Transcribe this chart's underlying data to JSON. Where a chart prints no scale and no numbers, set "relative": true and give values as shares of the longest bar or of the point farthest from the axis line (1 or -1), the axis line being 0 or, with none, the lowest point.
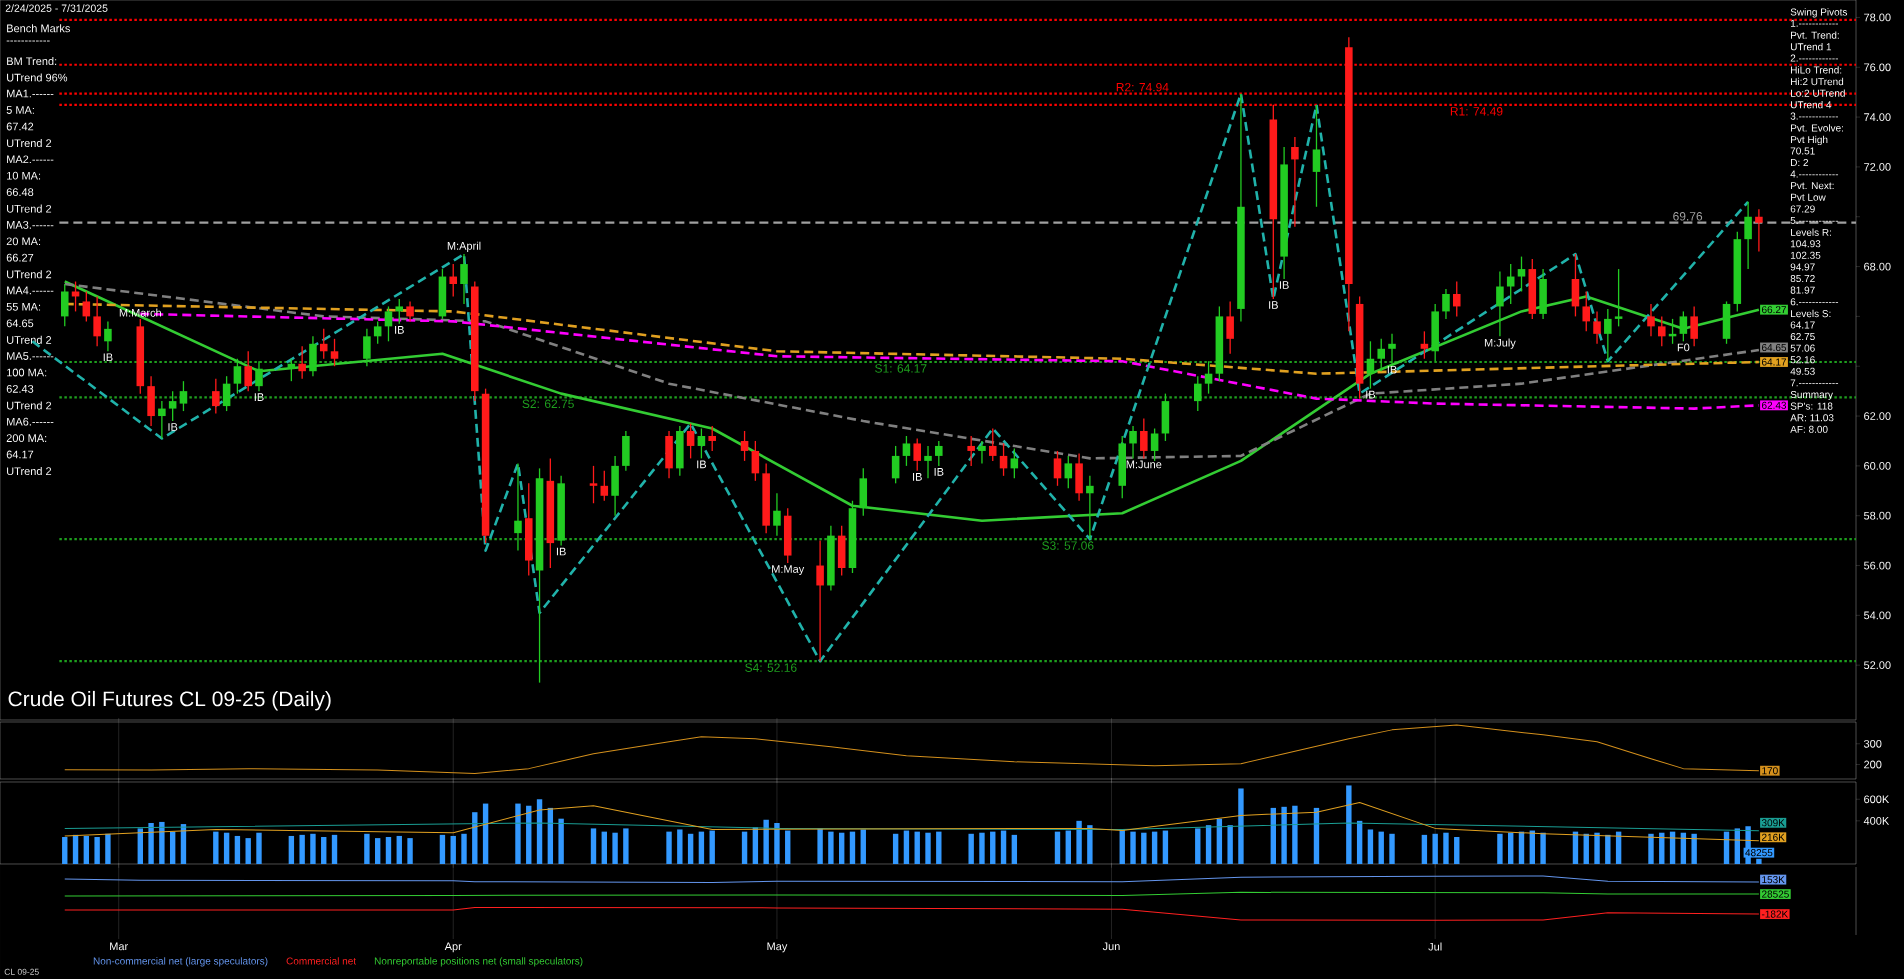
{
  "chart_data": [
    {
      "type": "other",
      "annotations": [
        "Bench Marks",
        "------------",
        "BM Trend:",
        "UTrend 96%",
        "MA1.------",
        "5 MA:",
        "67.42",
        "UTrend 2",
        "MA2.------",
        "10 MA:",
        "66.48",
        "UTrend 2",
        "MA3.------",
        "20 MA:",
        "66.27",
        "UTrend 2",
        "MA4.------",
        "55 MA:",
        "64.65",
        "UTrend 2",
        "MA5.------",
        "100 MA:",
        "62.43",
        "UTrend 2",
        "MA6.------",
        "200 MA:",
        "64.17",
        "UTrend 2"
      ]
    },
    {
      "type": "candlestick",
      "title": "Crude Oil Futures CL 09-25 (Daily)",
      "subtitle": "2/24/2025 - 7/31/2025",
      "x": [
        "2025-02-24",
        "2025-02-25",
        "2025-02-26",
        "2025-02-27",
        "2025-02-28",
        "2025-03-03",
        "2025-03-04",
        "2025-03-05",
        "2025-03-06",
        "2025-03-07",
        "2025-03-10",
        "2025-03-11",
        "2025-03-12",
        "2025-03-13",
        "2025-03-14",
        "2025-03-17",
        "2025-03-18",
        "2025-03-19",
        "2025-03-20",
        "2025-03-21",
        "2025-03-24",
        "2025-03-25",
        "2025-03-26",
        "2025-03-27",
        "2025-03-28",
        "2025-03-31",
        "2025-04-01",
        "2025-04-02",
        "2025-04-03",
        "2025-04-04",
        "2025-04-07",
        "2025-04-08",
        "2025-04-09",
        "2025-04-10",
        "2025-04-11",
        "2025-04-14",
        "2025-04-15",
        "2025-04-16",
        "2025-04-17",
        "2025-04-21",
        "2025-04-22",
        "2025-04-23",
        "2025-04-24",
        "2025-04-25",
        "2025-04-28",
        "2025-04-29",
        "2025-04-30",
        "2025-05-01",
        "2025-05-02",
        "2025-05-05",
        "2025-05-06",
        "2025-05-07",
        "2025-05-08",
        "2025-05-09",
        "2025-05-12",
        "2025-05-13",
        "2025-05-14",
        "2025-05-15",
        "2025-05-16",
        "2025-05-19",
        "2025-05-20",
        "2025-05-21",
        "2025-05-22",
        "2025-05-23",
        "2025-05-27",
        "2025-05-28",
        "2025-05-29",
        "2025-05-30",
        "2025-06-02",
        "2025-06-03",
        "2025-06-04",
        "2025-06-05",
        "2025-06-06",
        "2025-06-09",
        "2025-06-10",
        "2025-06-11",
        "2025-06-12",
        "2025-06-13",
        "2025-06-16",
        "2025-06-17",
        "2025-06-18",
        "2025-06-20",
        "2025-06-23",
        "2025-06-24",
        "2025-06-25",
        "2025-06-26",
        "2025-06-27",
        "2025-06-30",
        "2025-07-01",
        "2025-07-02",
        "2025-07-03",
        "2025-07-07",
        "2025-07-08",
        "2025-07-09",
        "2025-07-10",
        "2025-07-11",
        "2025-07-14",
        "2025-07-15",
        "2025-07-16",
        "2025-07-17",
        "2025-07-18",
        "2025-07-21",
        "2025-07-22",
        "2025-07-23",
        "2025-07-24",
        "2025-07-25",
        "2025-07-28",
        "2025-07-29",
        "2025-07-30",
        "2025-07-31"
      ],
      "ohlc": [
        [
          66.0,
          67.3,
          65.6,
          67.0
        ],
        [
          67.0,
          67.4,
          66.2,
          66.8
        ],
        [
          66.6,
          67.0,
          65.8,
          66.0
        ],
        [
          66.0,
          66.8,
          64.8,
          65.2
        ],
        [
          65.0,
          65.8,
          64.6,
          65.5
        ],
        [
          65.6,
          65.9,
          62.9,
          63.2
        ],
        [
          63.2,
          63.6,
          61.6,
          62.0
        ],
        [
          62.0,
          62.6,
          61.1,
          62.3
        ],
        [
          62.3,
          63.0,
          61.8,
          62.6
        ],
        [
          62.5,
          63.4,
          62.2,
          63.0
        ],
        [
          63.0,
          63.5,
          62.1,
          62.4
        ],
        [
          62.4,
          63.6,
          62.2,
          63.3
        ],
        [
          63.3,
          64.3,
          62.9,
          64.0
        ],
        [
          64.0,
          64.6,
          63.0,
          63.2
        ],
        [
          63.2,
          64.2,
          63.0,
          63.9
        ],
        [
          63.9,
          64.3,
          63.4,
          64.1
        ],
        [
          64.1,
          64.8,
          63.5,
          63.8
        ],
        [
          63.8,
          65.2,
          63.6,
          64.9
        ],
        [
          64.9,
          65.5,
          64.3,
          64.6
        ],
        [
          64.6,
          65.1,
          64.0,
          64.3
        ],
        [
          64.3,
          65.5,
          64.0,
          65.2
        ],
        [
          65.2,
          65.8,
          64.9,
          65.6
        ],
        [
          65.6,
          66.4,
          65.0,
          66.2
        ],
        [
          66.2,
          66.7,
          65.7,
          66.4
        ],
        [
          66.4,
          66.6,
          65.8,
          66.0
        ],
        [
          66.0,
          67.9,
          65.9,
          67.6
        ],
        [
          67.6,
          68.1,
          66.8,
          67.3
        ],
        [
          67.3,
          68.5,
          66.5,
          68.1
        ],
        [
          67.2,
          67.4,
          62.6,
          63.0
        ],
        [
          62.9,
          63.1,
          56.9,
          57.2
        ],
        [
          57.3,
          60.1,
          56.6,
          57.8
        ],
        [
          57.9,
          59.3,
          55.6,
          56.2
        ],
        [
          55.8,
          59.9,
          51.3,
          59.5
        ],
        [
          59.4,
          60.3,
          55.9,
          56.9
        ],
        [
          57.0,
          59.6,
          56.8,
          59.3
        ],
        [
          59.3,
          60.0,
          58.5,
          59.2
        ],
        [
          59.2,
          59.8,
          58.6,
          58.8
        ],
        [
          58.8,
          60.4,
          58.0,
          60.0
        ],
        [
          60.0,
          61.4,
          59.8,
          61.2
        ],
        [
          61.2,
          61.4,
          59.5,
          59.9
        ],
        [
          59.9,
          61.6,
          59.6,
          61.4
        ],
        [
          61.4,
          61.7,
          60.3,
          60.8
        ],
        [
          60.8,
          61.5,
          60.3,
          61.2
        ],
        [
          61.2,
          61.6,
          60.6,
          61.0
        ],
        [
          61.0,
          61.4,
          60.2,
          60.6
        ],
        [
          60.6,
          61.0,
          59.4,
          59.7
        ],
        [
          59.7,
          60.1,
          57.3,
          57.6
        ],
        [
          57.6,
          58.9,
          57.2,
          58.2
        ],
        [
          58.0,
          58.3,
          56.1,
          56.4
        ],
        [
          56.0,
          57.0,
          52.16,
          55.2
        ],
        [
          55.2,
          57.6,
          55.0,
          57.2
        ],
        [
          57.2,
          57.6,
          55.6,
          55.9
        ],
        [
          55.9,
          58.6,
          55.7,
          58.3
        ],
        [
          58.3,
          59.9,
          58.0,
          59.5
        ],
        [
          59.5,
          60.8,
          59.3,
          60.4
        ],
        [
          60.4,
          61.2,
          60.0,
          60.9
        ],
        [
          60.9,
          61.1,
          59.8,
          60.2
        ],
        [
          60.2,
          60.8,
          59.5,
          60.4
        ],
        [
          60.4,
          61.0,
          60.0,
          60.8
        ],
        [
          60.8,
          61.2,
          60.0,
          60.6
        ],
        [
          60.6,
          61.0,
          60.1,
          60.8
        ],
        [
          60.8,
          61.5,
          60.2,
          60.4
        ],
        [
          60.4,
          60.9,
          59.6,
          59.9
        ],
        [
          59.9,
          60.7,
          59.5,
          60.3
        ],
        [
          60.3,
          60.6,
          59.2,
          59.5
        ],
        [
          59.5,
          60.4,
          59.1,
          60.1
        ],
        [
          60.1,
          60.5,
          58.6,
          58.9
        ],
        [
          58.9,
          59.6,
          57.06,
          59.2
        ],
        [
          59.2,
          61.2,
          58.7,
          60.9
        ],
        [
          60.9,
          61.6,
          60.3,
          61.4
        ],
        [
          61.4,
          61.9,
          60.3,
          60.6
        ],
        [
          60.6,
          61.5,
          60.2,
          61.3
        ],
        [
          61.3,
          62.9,
          61.0,
          62.6
        ],
        [
          62.6,
          63.6,
          62.2,
          63.3
        ],
        [
          63.3,
          64.2,
          62.9,
          63.7
        ],
        [
          63.7,
          66.4,
          63.4,
          66.0
        ],
        [
          66.0,
          66.6,
          64.5,
          65.1
        ],
        [
          66.3,
          74.94,
          65.8,
          70.4
        ],
        [
          73.9,
          74.5,
          66.7,
          69.9
        ],
        [
          68.4,
          72.8,
          67.5,
          72.1
        ],
        [
          72.8,
          73.2,
          69.6,
          72.3
        ],
        [
          71.8,
          74.49,
          70.4,
          72.7
        ],
        [
          76.8,
          77.2,
          65.4,
          67.3
        ],
        [
          66.5,
          66.8,
          62.7,
          63.3
        ],
        [
          63.7,
          65.0,
          63.1,
          64.3
        ],
        [
          64.3,
          65.1,
          63.8,
          64.7
        ],
        [
          64.7,
          65.3,
          64.1,
          64.9
        ],
        [
          64.9,
          65.4,
          64.3,
          64.7
        ],
        [
          64.6,
          66.5,
          64.2,
          66.2
        ],
        [
          66.2,
          67.1,
          65.9,
          66.9
        ],
        [
          66.9,
          67.4,
          66.0,
          66.4
        ],
        [
          66.4,
          67.8,
          65.2,
          67.2
        ],
        [
          67.2,
          68.1,
          66.5,
          67.6
        ],
        [
          67.6,
          68.4,
          67.0,
          67.9
        ],
        [
          67.9,
          68.3,
          65.9,
          66.1
        ],
        [
          66.1,
          67.9,
          65.9,
          67.5
        ],
        [
          67.5,
          68.5,
          66.0,
          66.4
        ],
        [
          66.4,
          67.0,
          65.4,
          65.8
        ],
        [
          65.8,
          66.2,
          64.9,
          65.3
        ],
        [
          65.3,
          66.3,
          64.2,
          65.9
        ],
        [
          65.9,
          67.9,
          65.6,
          66.0
        ],
        [
          66.0,
          66.5,
          65.2,
          65.6
        ],
        [
          65.6,
          66.0,
          64.8,
          65.2
        ],
        [
          65.2,
          65.9,
          64.9,
          65.3
        ],
        [
          65.3,
          66.2,
          65.0,
          66.0
        ],
        [
          66.0,
          66.4,
          64.8,
          65.1
        ],
        [
          65.1,
          66.6,
          64.9,
          66.5
        ],
        [
          66.5,
          69.4,
          66.2,
          69.1
        ],
        [
          69.1,
          70.6,
          67.9,
          70.0
        ],
        [
          70.0,
          70.3,
          68.6,
          69.76
        ]
      ],
      "series": [
        {
          "type": "line",
          "color": "#33cc33",
          "line_style": "solid",
          "x": [
            "2025-02-24",
            "2025-03-14",
            "2025-03-31",
            "2025-04-11",
            "2025-04-25",
            "2025-05-08",
            "2025-05-20",
            "2025-06-02",
            "2025-06-13",
            "2025-06-25",
            "2025-07-09",
            "2025-07-15",
            "2025-07-24",
            "2025-07-31"
          ],
          "values": [
            67.4,
            63.8,
            64.5,
            62.9,
            61.5,
            58.4,
            57.8,
            58.1,
            60.2,
            63.7,
            66.2,
            66.8,
            65.5,
            66.27
          ],
          "value_labels": [
            null,
            null,
            null,
            null,
            null,
            null,
            null,
            null,
            null,
            null,
            null,
            null,
            null,
            "66.27"
          ]
        },
        {
          "type": "line",
          "color": "#808080",
          "line_style": "dashed",
          "x": [
            "2025-02-24",
            "2025-03-20",
            "2025-04-04",
            "2025-04-21",
            "2025-05-09",
            "2025-05-30",
            "2025-06-13",
            "2025-06-25",
            "2025-07-09",
            "2025-07-31"
          ],
          "values": [
            67.3,
            66.0,
            65.8,
            63.3,
            61.8,
            60.3,
            60.4,
            62.9,
            63.3,
            64.65
          ],
          "value_labels": [
            null,
            null,
            null,
            null,
            null,
            null,
            null,
            null,
            null,
            "64.65"
          ]
        },
        {
          "type": "line",
          "color": "#ff00ff",
          "line_style": "dashed",
          "x": [
            "2025-03-03",
            "2025-04-01",
            "2025-05-01",
            "2025-06-02",
            "2025-06-20",
            "2025-07-01",
            "2025-07-25",
            "2025-07-31"
          ],
          "values": [
            66.1,
            65.8,
            64.4,
            64.2,
            62.7,
            62.5,
            62.3,
            62.43
          ],
          "value_labels": [
            null,
            null,
            null,
            null,
            null,
            null,
            null,
            "62.43"
          ]
        },
        {
          "type": "line",
          "color": "#e0a020",
          "line_style": "dashed",
          "x": [
            "2025-02-24",
            "2025-04-01",
            "2025-05-01",
            "2025-06-02",
            "2025-06-20",
            "2025-07-31"
          ],
          "values": [
            66.5,
            66.2,
            64.6,
            64.3,
            63.7,
            64.17
          ],
          "value_labels": [
            null,
            null,
            null,
            null,
            null,
            "64.17"
          ]
        },
        {
          "type": "line",
          "color": "#20b2aa",
          "line_style": "dashed",
          "x": [
            "2025-02-21",
            "2025-03-05",
            "2025-04-02",
            "2025-04-04",
            "2025-04-07",
            "2025-04-09",
            "2025-04-23",
            "2025-05-05",
            "2025-05-21",
            "2025-05-30",
            "2025-06-13",
            "2025-06-16",
            "2025-06-20",
            "2025-06-24",
            "2025-07-14",
            "2025-07-17",
            "2025-07-30"
          ],
          "values": [
            65.0,
            61.1,
            68.5,
            56.6,
            60.1,
            54.1,
            61.7,
            52.16,
            61.5,
            57.06,
            74.94,
            66.7,
            74.49,
            62.9,
            68.5,
            64.2,
            70.6
          ]
        }
      ],
      "ref_lines": [
        {
          "axis": "y",
          "value": 74.94,
          "label": "R2: 74.94",
          "color": "#ff0000",
          "line_style": "dotted"
        },
        {
          "axis": "y",
          "value": 74.49,
          "label": "R1: 74.49",
          "color": "#ff0000",
          "line_style": "dotted"
        },
        {
          "axis": "y",
          "value": 64.17,
          "label": "S1: 64.17",
          "color": "#1e9e1e",
          "line_style": "dotted"
        },
        {
          "axis": "y",
          "value": 62.75,
          "label": "S2: 62.75",
          "color": "#1e9e1e",
          "line_style": "dotted"
        },
        {
          "axis": "y",
          "value": 57.06,
          "label": "S3: 57.06",
          "color": "#1e9e1e",
          "line_style": "dotted"
        },
        {
          "axis": "y",
          "value": 52.16,
          "label": "S4: 52.16",
          "color": "#1e9e1e",
          "line_style": "dotted"
        },
        {
          "axis": "y",
          "value": 69.76,
          "label": "69.76",
          "color": "#a0a0a0",
          "line_style": "dashed"
        },
        {
          "axis": "y",
          "value": 77.9,
          "color": "#ff0000",
          "line_style": "dotted"
        },
        {
          "axis": "y",
          "value": 76.1,
          "color": "#ff0000",
          "line_style": "dotted"
        }
      ],
      "annotations": [
        {
          "text": "IB",
          "x": "2025-02-28",
          "y": 64.6
        },
        {
          "text": "IB",
          "x": "2025-03-06",
          "y": 61.8
        },
        {
          "text": "IB",
          "x": "2025-03-14",
          "y": 63.0
        },
        {
          "text": "IB",
          "x": "2025-03-27",
          "y": 65.7
        },
        {
          "text": "IB",
          "x": "2025-04-11",
          "y": 56.8
        },
        {
          "text": "IB",
          "x": "2025-04-24",
          "y": 60.3
        },
        {
          "text": "IB",
          "x": "2025-05-14",
          "y": 59.8
        },
        {
          "text": "IB",
          "x": "2025-05-16",
          "y": 60.0
        },
        {
          "text": "IB",
          "x": "2025-06-16",
          "y": 66.7
        },
        {
          "text": "IB",
          "x": "2025-06-17",
          "y": 67.5
        },
        {
          "text": "IB",
          "x": "2025-06-25",
          "y": 63.1
        },
        {
          "text": "IB",
          "x": "2025-06-27",
          "y": 64.1
        },
        {
          "text": "M:March",
          "x": "2025-03-03",
          "y": 65.9
        },
        {
          "text": "M:April",
          "x": "2025-04-02",
          "y": 68.5
        },
        {
          "text": "M:May",
          "x": "2025-05-02",
          "y": 56.1
        },
        {
          "text": "M:June",
          "x": "2025-06-04",
          "y": 60.3
        },
        {
          "text": "M:July",
          "x": "2025-07-07",
          "y": 65.2
        },
        {
          "text": "F0",
          "x": "2025-07-24",
          "y": 65.0
        },
        "CL 09-25"
      ],
      "xlim": [
        "2025-02-18",
        "2025-08-09"
      ],
      "ylim": [
        49.8,
        78.7
      ],
      "yticks": [
        {
          "value": 52,
          "label": "52.00"
        },
        {
          "value": 54,
          "label": "54.00"
        },
        {
          "value": 56,
          "label": "56.00"
        },
        {
          "value": 58,
          "label": "58.00"
        },
        {
          "value": 60,
          "label": "60.00"
        },
        {
          "value": 62,
          "label": "62.00"
        },
        {
          "value": 64,
          "label": null
        },
        {
          "value": 66,
          "label": null
        },
        {
          "value": 68,
          "label": "68.00"
        },
        {
          "value": 70,
          "label": null
        },
        {
          "value": 72,
          "label": "72.00"
        },
        {
          "value": 74,
          "label": "74.00"
        },
        {
          "value": 76,
          "label": "76.00"
        },
        {
          "value": 78,
          "label": "78.00"
        }
      ],
      "tick_labels": "y"
    },
    {
      "type": "other",
      "annotations": [
        "Swing Pivots",
        "1.------------",
        "Pvt. Trend:",
        "UTrend 1",
        "2.------------",
        "HiLo Trend:",
        "Hi:2 UTrend",
        "Lo:2 UTrend",
        "UTrend 4",
        "3.------------",
        "Pvt. Evolve:",
        "Pvt High",
        "70.51",
        "D: 2",
        "4.------------",
        "Pvt. Next:",
        "Pvt Low",
        "67.29",
        "5.------------",
        "Levels R:",
        "104.93",
        "102.35",
        "94.97",
        "85.72",
        "81.97",
        "6.------------",
        "Levels S:",
        "64.17",
        "62.75",
        "57.06",
        "52.16",
        "49.53",
        "7.------------",
        "Summary",
        "SP's: 118",
        "AR: 11.03",
        "AF: 8.00"
      ]
    },
    {
      "type": "line",
      "color": "#d4901c",
      "x": [
        "2025-02-24",
        "2025-03-04",
        "2025-03-13",
        "2025-03-25",
        "2025-04-03",
        "2025-04-08",
        "2025-04-14",
        "2025-04-21",
        "2025-04-24",
        "2025-04-29",
        "2025-05-06",
        "2025-05-13",
        "2025-05-23",
        "2025-06-05",
        "2025-06-13",
        "2025-06-17",
        "2025-06-23",
        "2025-06-27",
        "2025-07-03",
        "2025-07-11",
        "2025-07-16",
        "2025-07-21",
        "2025-07-24",
        "2025-07-31"
      ],
      "values": [
        175,
        173,
        180,
        173,
        156,
        180,
        252,
        310,
        334,
        324,
        285,
        242,
        213,
        194,
        204,
        252,
        324,
        367,
        391,
        343,
        310,
        228,
        180,
        170
      ],
      "value_labels": [
        null,
        null,
        null,
        null,
        null,
        null,
        null,
        null,
        null,
        null,
        null,
        null,
        null,
        null,
        null,
        null,
        null,
        null,
        null,
        null,
        null,
        null,
        null,
        "170"
      ],
      "xlim": [
        "2025-02-18",
        "2025-08-09"
      ],
      "ylim": [
        130,
        405
      ],
      "yticks": [
        200,
        300
      ],
      "xticks": [
        {
          "value": "2025-03-01",
          "label": null
        },
        {
          "value": "2025-04-01",
          "label": null
        },
        {
          "value": "2025-05-01",
          "label": null
        },
        {
          "value": "2025-06-01",
          "label": null
        },
        {
          "value": "2025-07-01",
          "label": null
        }
      ],
      "grid": "x",
      "tick_labels": "y"
    },
    {
      "type": "bar",
      "x": [
        "2025-02-24",
        "2025-02-25",
        "2025-02-26",
        "2025-02-27",
        "2025-02-28",
        "2025-03-03",
        "2025-03-04",
        "2025-03-05",
        "2025-03-06",
        "2025-03-07",
        "2025-03-10",
        "2025-03-11",
        "2025-03-12",
        "2025-03-13",
        "2025-03-14",
        "2025-03-17",
        "2025-03-18",
        "2025-03-19",
        "2025-03-20",
        "2025-03-21",
        "2025-03-24",
        "2025-03-25",
        "2025-03-26",
        "2025-03-27",
        "2025-03-28",
        "2025-03-31",
        "2025-04-01",
        "2025-04-02",
        "2025-04-03",
        "2025-04-04",
        "2025-04-07",
        "2025-04-08",
        "2025-04-09",
        "2025-04-10",
        "2025-04-11",
        "2025-04-14",
        "2025-04-15",
        "2025-04-16",
        "2025-04-17",
        "2025-04-21",
        "2025-04-22",
        "2025-04-23",
        "2025-04-24",
        "2025-04-25",
        "2025-04-28",
        "2025-04-29",
        "2025-04-30",
        "2025-05-01",
        "2025-05-02",
        "2025-05-05",
        "2025-05-06",
        "2025-05-07",
        "2025-05-08",
        "2025-05-09",
        "2025-05-12",
        "2025-05-13",
        "2025-05-14",
        "2025-05-15",
        "2025-05-16",
        "2025-05-19",
        "2025-05-20",
        "2025-05-21",
        "2025-05-22",
        "2025-05-23",
        "2025-05-27",
        "2025-05-28",
        "2025-05-29",
        "2025-05-30",
        "2025-06-02",
        "2025-06-03",
        "2025-06-04",
        "2025-06-05",
        "2025-06-06",
        "2025-06-09",
        "2025-06-10",
        "2025-06-11",
        "2025-06-12",
        "2025-06-13",
        "2025-06-16",
        "2025-06-17",
        "2025-06-18",
        "2025-06-20",
        "2025-06-23",
        "2025-06-24",
        "2025-06-25",
        "2025-06-26",
        "2025-06-27",
        "2025-06-30",
        "2025-07-01",
        "2025-07-02",
        "2025-07-03",
        "2025-07-07",
        "2025-07-08",
        "2025-07-09",
        "2025-07-10",
        "2025-07-11",
        "2025-07-14",
        "2025-07-15",
        "2025-07-16",
        "2025-07-17",
        "2025-07-18",
        "2025-07-21",
        "2025-07-22",
        "2025-07-23",
        "2025-07-24",
        "2025-07-25",
        "2025-07-28",
        "2025-07-29",
        "2025-07-30",
        "2025-07-31"
      ],
      "series": [
        {
          "color": "#3399ff",
          "values": [
            250000,
            270000,
            260000,
            250000,
            280000,
            330000,
            380000,
            390000,
            300000,
            370000,
            300000,
            290000,
            260000,
            240000,
            290000,
            260000,
            270000,
            280000,
            250000,
            270000,
            280000,
            240000,
            250000,
            260000,
            240000,
            270000,
            260000,
            280000,
            480000,
            560000,
            560000,
            540000,
            600000,
            520000,
            420000,
            330000,
            300000,
            290000,
            330000,
            300000,
            320000,
            280000,
            300000,
            310000,
            300000,
            340000,
            410000,
            380000,
            310000,
            330000,
            300000,
            290000,
            300000,
            320000,
            280000,
            310000,
            300000,
            290000,
            300000,
            280000,
            290000,
            300000,
            310000,
            270000,
            300000,
            310000,
            400000,
            360000,
            320000,
            300000,
            290000,
            300000,
            310000,
            330000,
            360000,
            420000,
            360000,
            700000,
            520000,
            530000,
            540000,
            520000,
            728000,
            400000,
            320000,
            300000,
            280000,
            270000,
            280000,
            290000,
            250000,
            280000,
            290000,
            300000,
            310000,
            290000,
            300000,
            280000,
            290000,
            270000,
            300000,
            280000,
            290000,
            300000,
            290000,
            280000,
            300000,
            330000,
            350000,
            48255
          ],
          "value_labels": [
            null,
            null,
            null,
            null,
            null,
            null,
            null,
            null,
            null,
            null,
            null,
            null,
            null,
            null,
            null,
            null,
            null,
            null,
            null,
            null,
            null,
            null,
            null,
            null,
            null,
            null,
            null,
            null,
            null,
            null,
            null,
            null,
            null,
            null,
            null,
            null,
            null,
            null,
            null,
            null,
            null,
            null,
            null,
            null,
            null,
            null,
            null,
            null,
            null,
            null,
            null,
            null,
            null,
            null,
            null,
            null,
            null,
            null,
            null,
            null,
            null,
            null,
            null,
            null,
            null,
            null,
            null,
            null,
            null,
            null,
            null,
            null,
            null,
            null,
            null,
            null,
            null,
            null,
            null,
            null,
            null,
            null,
            null,
            null,
            null,
            null,
            null,
            null,
            null,
            null,
            null,
            null,
            null,
            null,
            null,
            null,
            null,
            null,
            null,
            null,
            null,
            null,
            null,
            null,
            null,
            null,
            null,
            null,
            null,
            "48255"
          ]
        },
        {
          "type": "line",
          "color": "#1a9e94",
          "x": [
            "2025-02-24",
            "2025-04-09",
            "2025-05-01",
            "2025-06-02",
            "2025-06-23",
            "2025-07-31"
          ],
          "values": [
            330000,
            380000,
            330000,
            320000,
            380000,
            309000
          ],
          "value_labels": [
            null,
            null,
            null,
            null,
            null,
            "309K"
          ]
        },
        {
          "type": "line",
          "color": "#e0a020",
          "x": [
            "2025-02-24",
            "2025-03-10",
            "2025-04-01",
            "2025-04-09",
            "2025-04-14",
            "2025-04-25",
            "2025-05-30",
            "2025-06-02",
            "2025-06-13",
            "2025-06-20",
            "2025-06-24",
            "2025-07-01",
            "2025-07-11",
            "2025-07-31"
          ],
          "values": [
            260000,
            320000,
            290000,
            500000,
            540000,
            320000,
            330000,
            310000,
            450000,
            480000,
            570000,
            330000,
            280000,
            216000
          ],
          "value_labels": [
            null,
            null,
            null,
            null,
            null,
            null,
            null,
            null,
            null,
            null,
            null,
            null,
            null,
            "216K"
          ]
        }
      ],
      "xlim": [
        "2025-02-18",
        "2025-08-09"
      ],
      "ylim": [
        0,
        760000
      ],
      "yticks": [
        {
          "value": 400000,
          "label": "400K"
        },
        {
          "value": 600000,
          "label": "600K"
        }
      ],
      "xticks": [
        {
          "value": "2025-03-01",
          "label": null
        },
        {
          "value": "2025-04-01",
          "label": null
        },
        {
          "value": "2025-05-01",
          "label": null
        },
        {
          "value": "2025-06-01",
          "label": null
        },
        {
          "value": "2025-07-01",
          "label": null
        }
      ],
      "grid": "x",
      "tick_labels": "y"
    },
    {
      "type": "line",
      "relative": true,
      "series": [
        {
          "name": "Non-commercial net (large speculators)",
          "color": "#6495ed",
          "x": [
            "2025-02-24",
            "2025-03-03",
            "2025-04-01",
            "2025-04-03",
            "2025-04-25",
            "2025-05-01",
            "2025-06-02",
            "2025-06-13",
            "2025-07-01",
            "2025-07-11",
            "2025-07-17",
            "2025-07-31"
          ],
          "values": [
            0.93,
            0.9,
            0.89,
            0.87,
            0.85,
            0.88,
            0.87,
            0.97,
            0.99,
            1,
            0.88,
            0.86
          ]
        },
        {
          "name": "Commercial net",
          "color": "#ff2020",
          "x": [
            "2025-02-24",
            "2025-04-01",
            "2025-04-03",
            "2025-05-01",
            "2025-06-02",
            "2025-06-13",
            "2025-07-01",
            "2025-07-11",
            "2025-07-17",
            "2025-07-31"
          ],
          "values": [
            0.23,
            0.23,
            0.29,
            0.28,
            0.25,
            0.01,
            0,
            0.01,
            0.17,
            0.14
          ]
        },
        {
          "name": "Nonreportable positions net (small speculators)",
          "color": "#33cc33",
          "x": [
            "2025-02-24",
            "2025-04-01",
            "2025-05-01",
            "2025-06-02",
            "2025-06-13",
            "2025-07-11",
            "2025-07-17",
            "2025-07-31"
          ],
          "values": [
            0.55,
            0.56,
            0.57,
            0.56,
            0.63,
            0.62,
            0.59,
            0.59
          ]
        }
      ],
      "xlim": [
        "2025-02-18",
        "2025-08-09"
      ],
      "xticks": [
        {
          "value": "2025-03-01",
          "label": "Mar"
        },
        {
          "value": "2025-04-01",
          "label": "Apr"
        },
        {
          "value": "2025-05-01",
          "label": "May"
        },
        {
          "value": "2025-06-01",
          "label": "Jun"
        },
        {
          "value": "2025-07-01",
          "label": "Jul"
        }
      ],
      "grid": "x",
      "tick_labels": "x",
      "annotations": [
        "153K",
        "-182K",
        "28525"
      ]
    }
  ]
}
